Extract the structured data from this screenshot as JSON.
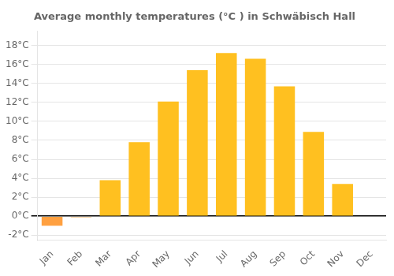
{
  "chart_data": {
    "type": "bar",
    "title": "Average monthly temperatures (°C ) in Schwäbisch Hall",
    "categories": [
      "Jan",
      "Feb",
      "Mar",
      "Apr",
      "May",
      "Jun",
      "Jul",
      "Aug",
      "Sep",
      "Oct",
      "Nov",
      "Dec"
    ],
    "values": [
      -1.0,
      -0.1,
      3.8,
      7.8,
      12.1,
      15.4,
      17.2,
      16.6,
      13.7,
      8.9,
      3.4,
      0.0
    ],
    "colors": [
      "#FFA040",
      "#FFA040",
      "#FFC020",
      "#FFC020",
      "#FFC020",
      "#FFC020",
      "#FFC020",
      "#FFC020",
      "#FFC020",
      "#FFC020",
      "#FFC020",
      "#FFC020"
    ],
    "ylim": [
      -2.5,
      19.5
    ],
    "yticks": [
      {
        "value": -2,
        "label": "-2°C"
      },
      {
        "value": 0,
        "label": "0°C"
      },
      {
        "value": 2,
        "label": "2°C"
      },
      {
        "value": 4,
        "label": "4°C"
      },
      {
        "value": 6,
        "label": "6°C"
      },
      {
        "value": 8,
        "label": "8°C"
      },
      {
        "value": 10,
        "label": "10°C"
      },
      {
        "value": 12,
        "label": "12°C"
      },
      {
        "value": 14,
        "label": "14°C"
      },
      {
        "value": 16,
        "label": "16°C"
      },
      {
        "value": 18,
        "label": "18°C"
      }
    ],
    "grid": true
  }
}
